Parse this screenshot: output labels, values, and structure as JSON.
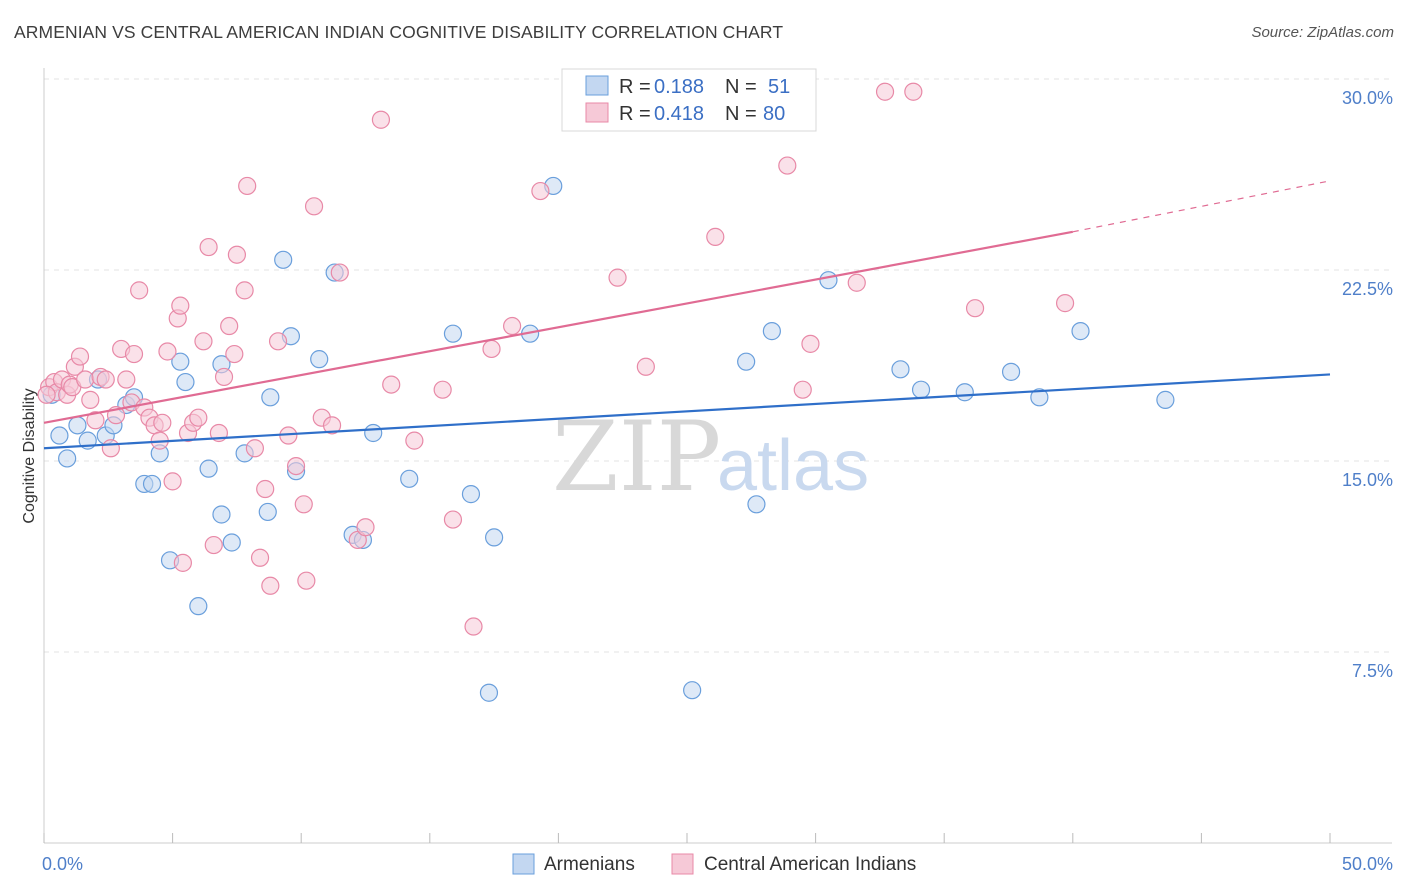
{
  "title": "ARMENIAN VS CENTRAL AMERICAN INDIAN COGNITIVE DISABILITY CORRELATION CHART",
  "source": "Source: ZipAtlas.com",
  "watermark": {
    "part1": "ZIP",
    "part2": "atlas"
  },
  "legend": {
    "r_label": "R =",
    "n_label": "N =",
    "entries": [
      {
        "r": "0.188",
        "n": "51"
      },
      {
        "r": "0.418",
        "n": "80"
      }
    ]
  },
  "chart_data": {
    "type": "scatter",
    "ylabel": "Cognitive Disability",
    "x_tick_labels": [
      "0.0%",
      "50.0%"
    ],
    "y_tick_labels": [
      "7.5%",
      "15.0%",
      "22.5%",
      "30.0%"
    ],
    "xlim": [
      0,
      50
    ],
    "ylim": [
      0,
      31.5
    ],
    "y_ticks": [
      7.5,
      15.0,
      22.5,
      30.0
    ],
    "grid": "horizontal dashed",
    "legend_position": "top-center",
    "colors": {
      "armenians": "#6a9fdc",
      "armenians_fill": "#c3d7f1",
      "central_american_indians": "#e889a7",
      "central_american_indians_fill": "#f6c9d7",
      "armenians_line": "#2f6fc9",
      "central_american_indians_line": "#e06b93"
    },
    "series": [
      {
        "name": "Armenians",
        "trend": {
          "x": [
            0,
            50
          ],
          "y": [
            15.5,
            18.4
          ]
        },
        "points": [
          [
            0.3,
            17.6
          ],
          [
            0.6,
            16.0
          ],
          [
            0.9,
            15.1
          ],
          [
            1.3,
            16.4
          ],
          [
            1.7,
            15.8
          ],
          [
            2.1,
            18.2
          ],
          [
            2.4,
            16.0
          ],
          [
            2.7,
            16.4
          ],
          [
            3.2,
            17.2
          ],
          [
            3.5,
            17.5
          ],
          [
            3.9,
            14.1
          ],
          [
            4.2,
            14.1
          ],
          [
            4.5,
            15.3
          ],
          [
            4.9,
            11.1
          ],
          [
            5.3,
            18.9
          ],
          [
            5.5,
            18.1
          ],
          [
            6.0,
            9.3
          ],
          [
            6.4,
            14.7
          ],
          [
            6.9,
            18.8
          ],
          [
            6.9,
            12.9
          ],
          [
            7.3,
            11.8
          ],
          [
            7.8,
            15.3
          ],
          [
            8.7,
            13.0
          ],
          [
            8.8,
            17.5
          ],
          [
            9.3,
            22.9
          ],
          [
            9.6,
            19.9
          ],
          [
            9.8,
            14.6
          ],
          [
            10.7,
            19.0
          ],
          [
            11.3,
            22.4
          ],
          [
            12.0,
            12.1
          ],
          [
            12.4,
            11.9
          ],
          [
            12.8,
            16.1
          ],
          [
            14.2,
            14.3
          ],
          [
            15.9,
            20.0
          ],
          [
            16.6,
            13.7
          ],
          [
            17.3,
            5.9
          ],
          [
            17.5,
            12.0
          ],
          [
            18.9,
            20.0
          ],
          [
            19.8,
            25.8
          ],
          [
            25.2,
            6.0
          ],
          [
            27.3,
            18.9
          ],
          [
            27.7,
            13.3
          ],
          [
            28.3,
            20.1
          ],
          [
            30.5,
            22.1
          ],
          [
            33.3,
            18.6
          ],
          [
            34.1,
            17.8
          ],
          [
            35.8,
            17.7
          ],
          [
            37.6,
            18.5
          ],
          [
            38.7,
            17.5
          ],
          [
            40.3,
            20.1
          ],
          [
            43.6,
            17.4
          ]
        ]
      },
      {
        "name": "Central American Indians",
        "trend": {
          "x": [
            0,
            40
          ],
          "y": [
            16.5,
            24.0
          ]
        },
        "trend_extension": {
          "x": [
            40,
            50
          ],
          "y": [
            24.0,
            26.0
          ]
        },
        "points": [
          [
            0.2,
            17.9
          ],
          [
            0.4,
            18.1
          ],
          [
            0.5,
            17.7
          ],
          [
            0.7,
            18.2
          ],
          [
            0.9,
            17.6
          ],
          [
            1.0,
            18.0
          ],
          [
            1.1,
            17.9
          ],
          [
            1.2,
            18.7
          ],
          [
            1.4,
            19.1
          ],
          [
            1.6,
            18.2
          ],
          [
            1.8,
            17.4
          ],
          [
            2.0,
            16.6
          ],
          [
            2.2,
            18.3
          ],
          [
            2.4,
            18.2
          ],
          [
            2.6,
            15.5
          ],
          [
            2.8,
            16.8
          ],
          [
            3.0,
            19.4
          ],
          [
            3.2,
            18.2
          ],
          [
            3.4,
            17.3
          ],
          [
            3.5,
            19.2
          ],
          [
            3.7,
            21.7
          ],
          [
            3.9,
            17.1
          ],
          [
            4.1,
            16.7
          ],
          [
            4.3,
            16.4
          ],
          [
            4.5,
            15.8
          ],
          [
            4.6,
            16.5
          ],
          [
            4.8,
            19.3
          ],
          [
            5.0,
            14.2
          ],
          [
            5.2,
            20.6
          ],
          [
            5.3,
            21.1
          ],
          [
            5.4,
            11.0
          ],
          [
            5.6,
            16.1
          ],
          [
            5.8,
            16.5
          ],
          [
            6.0,
            16.7
          ],
          [
            6.2,
            19.7
          ],
          [
            6.4,
            23.4
          ],
          [
            6.6,
            11.7
          ],
          [
            6.8,
            16.1
          ],
          [
            7.0,
            18.3
          ],
          [
            7.2,
            20.3
          ],
          [
            7.4,
            19.2
          ],
          [
            7.5,
            23.1
          ],
          [
            7.8,
            21.7
          ],
          [
            7.9,
            25.8
          ],
          [
            8.2,
            15.5
          ],
          [
            8.4,
            11.2
          ],
          [
            8.6,
            13.9
          ],
          [
            8.8,
            10.1
          ],
          [
            9.1,
            19.7
          ],
          [
            9.5,
            16.0
          ],
          [
            9.8,
            14.8
          ],
          [
            10.1,
            13.3
          ],
          [
            10.2,
            10.3
          ],
          [
            10.5,
            25.0
          ],
          [
            10.8,
            16.7
          ],
          [
            11.2,
            16.4
          ],
          [
            11.5,
            22.4
          ],
          [
            12.2,
            11.9
          ],
          [
            12.5,
            12.4
          ],
          [
            13.1,
            28.4
          ],
          [
            13.5,
            18.0
          ],
          [
            14.4,
            15.8
          ],
          [
            15.5,
            17.8
          ],
          [
            15.9,
            12.7
          ],
          [
            16.7,
            8.5
          ],
          [
            17.4,
            19.4
          ],
          [
            18.2,
            20.3
          ],
          [
            19.3,
            25.6
          ],
          [
            22.3,
            22.2
          ],
          [
            23.4,
            18.7
          ],
          [
            26.1,
            23.8
          ],
          [
            28.9,
            26.6
          ],
          [
            29.5,
            17.8
          ],
          [
            29.8,
            19.6
          ],
          [
            31.6,
            22.0
          ],
          [
            32.7,
            29.5
          ],
          [
            33.8,
            29.5
          ],
          [
            36.2,
            21.0
          ],
          [
            39.7,
            21.2
          ],
          [
            0.1,
            17.6
          ]
        ]
      }
    ]
  },
  "bottom_legend": {
    "entries": [
      "Armenians",
      "Central American Indians"
    ]
  }
}
